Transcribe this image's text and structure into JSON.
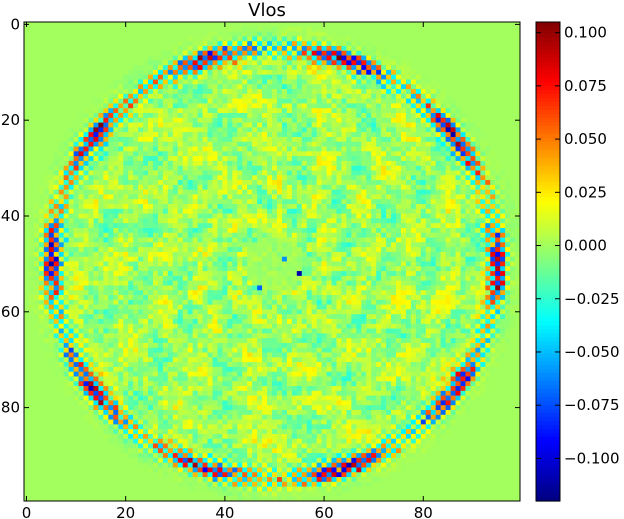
{
  "chart_data": {
    "type": "heatmap",
    "title": "Vlos",
    "xlabel": "",
    "ylabel": "",
    "grid_size": [
      100,
      100
    ],
    "xlim": [
      -0.5,
      99.5
    ],
    "ylim": [
      99.5,
      -0.5
    ],
    "x_ticks": [
      0,
      20,
      40,
      60,
      80
    ],
    "y_ticks": [
      0,
      20,
      40,
      60,
      80
    ],
    "colormap": "jet",
    "background_value": 0.0,
    "center": [
      50,
      50
    ],
    "ring_radius": 45,
    "colorbar": {
      "min": -0.12,
      "max": 0.105,
      "ticks": [
        0.1,
        0.075,
        0.05,
        0.025,
        0.0,
        -0.025,
        -0.05,
        -0.075,
        -0.1
      ],
      "tick_labels": [
        "0.100",
        "0.075",
        "0.050",
        "0.025",
        "0.000",
        "−0.025",
        "−0.050",
        "−0.075",
        "−0.100"
      ]
    },
    "description_values": {
      "ring_amplitude": 0.1,
      "interior_amplitude": 0.04,
      "central_quiet_radius": 6
    }
  },
  "colors": {
    "jet_stops": [
      "#00007f",
      "#0000ff",
      "#00ffff",
      "#7fff7f",
      "#ffff00",
      "#ff0000",
      "#7f0000"
    ]
  }
}
